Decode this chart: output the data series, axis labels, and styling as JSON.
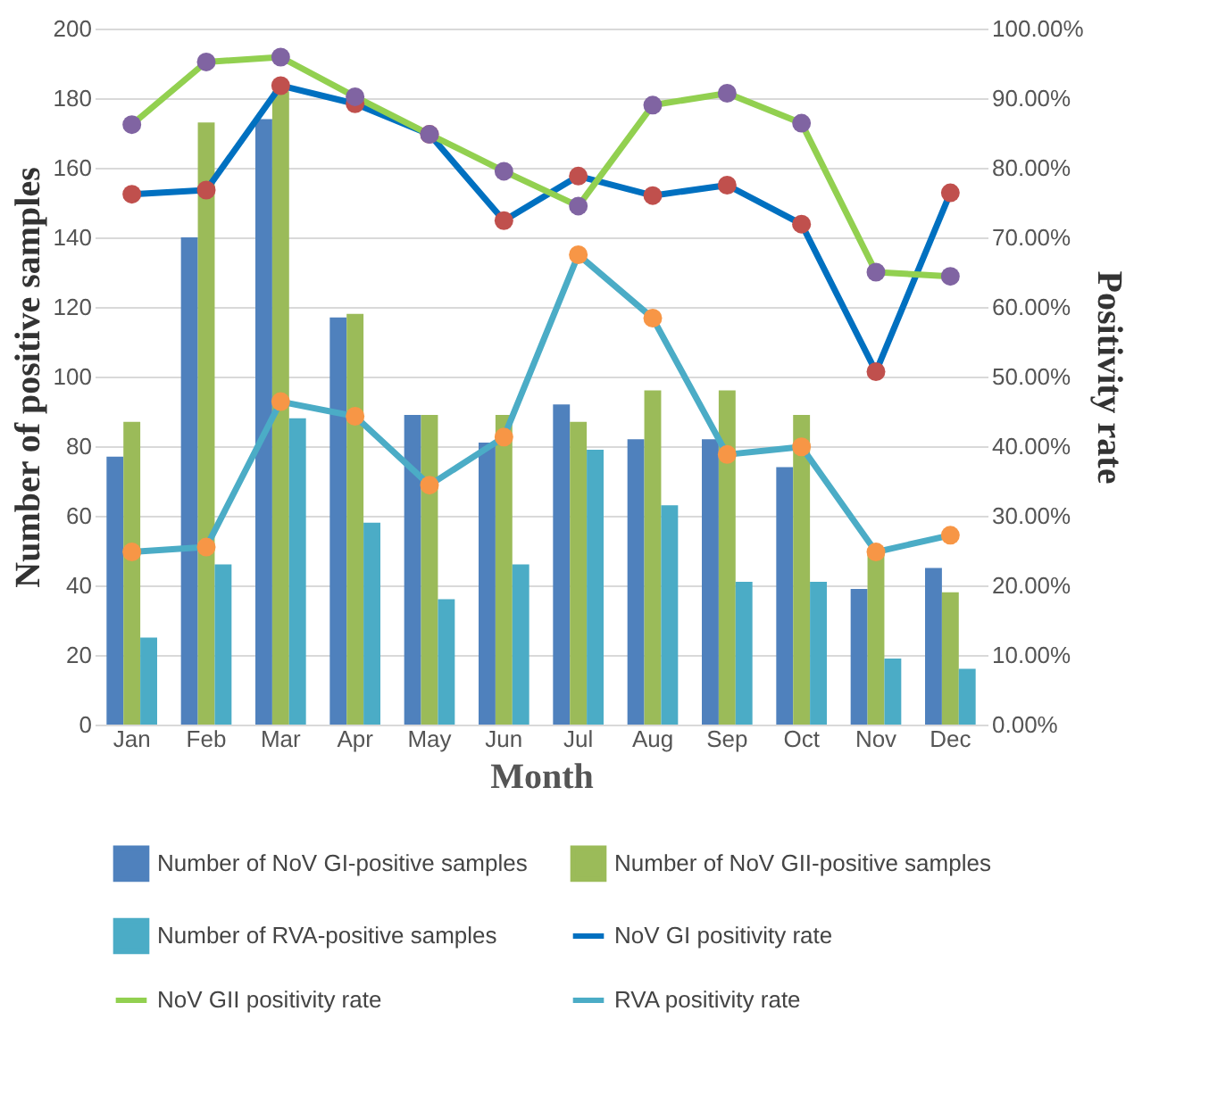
{
  "chart_data": {
    "type": "bar",
    "xlabel": "Month",
    "ylabel": "Number of positive samples",
    "y2label": "Positivity rate",
    "categories": [
      "Jan",
      "Feb",
      "Mar",
      "Apr",
      "May",
      "Jun",
      "Jul",
      "Aug",
      "Sep",
      "Oct",
      "Nov",
      "Dec"
    ],
    "series": [
      {
        "name": "Number of NoV GI-positive samples",
        "color": "#4f81bd",
        "values": [
          77,
          140,
          174,
          117,
          89,
          81,
          92,
          82,
          82,
          74,
          39,
          45
        ]
      },
      {
        "name": "Number of NoV GII-positive samples",
        "color": "#9bbb59",
        "values": [
          87,
          173,
          182,
          118,
          89,
          89,
          87,
          96,
          96,
          89,
          49,
          38
        ]
      },
      {
        "name": "Number of RVA-positive samples",
        "color": "#4bacc6",
        "values": [
          25,
          46,
          88,
          58,
          36,
          46,
          79,
          63,
          41,
          41,
          19,
          16
        ]
      },
      {
        "name": "NoV GI positivity rate",
        "type": "line",
        "axis": "y2",
        "color": "#0070c0",
        "colors": [
          "#c0504d",
          "#c0504d",
          "#c0504d",
          "#c0504d",
          "#c0504d",
          "#c0504d",
          "#c0504d",
          "#c0504d",
          "#c0504d",
          "#c0504d",
          "#c0504d",
          "#c0504d"
        ],
        "values": [
          76.2,
          76.8,
          91.8,
          89.2,
          84.8,
          72.4,
          78.8,
          76.0,
          77.5,
          71.9,
          50.7,
          76.4
        ]
      },
      {
        "name": "NoV GII positivity rate",
        "type": "line",
        "axis": "y2",
        "color": "#92d050",
        "colors": [
          "#8064a2",
          "#8064a2",
          "#8064a2",
          "#8064a2",
          "#8064a2",
          "#8064a2",
          "#8064a2",
          "#8064a2",
          "#8064a2",
          "#8064a2",
          "#8064a2",
          "#8064a2"
        ],
        "values": [
          86.2,
          95.2,
          95.9,
          90.2,
          84.8,
          79.5,
          74.5,
          89.0,
          90.7,
          86.4,
          65.0,
          64.4
        ]
      },
      {
        "name": "RVA positivity rate",
        "type": "line",
        "axis": "y2",
        "color": "#4bacc6",
        "colors": [
          "#f79646",
          "#f79646",
          "#f79646",
          "#f79646",
          "#f79646",
          "#f79646",
          "#f79646",
          "#f79646",
          "#f79646",
          "#f79646",
          "#f79646",
          "#f79646"
        ],
        "values": [
          24.8,
          25.5,
          46.4,
          44.3,
          34.4,
          41.3,
          67.5,
          58.4,
          38.8,
          39.9,
          24.8,
          27.2
        ]
      }
    ],
    "ylim": [
      0,
      200
    ],
    "yticks": [
      0,
      20,
      40,
      60,
      80,
      100,
      120,
      140,
      160,
      180,
      200
    ],
    "y2lim": [
      0,
      100
    ],
    "y2ticks": [
      {
        "value": 0,
        "label": "0.00%"
      },
      {
        "value": 10,
        "label": "10.00%"
      },
      {
        "value": 20,
        "label": "20.00%"
      },
      {
        "value": 30,
        "label": "30.00%"
      },
      {
        "value": 40,
        "label": "40.00%"
      },
      {
        "value": 50,
        "label": "50.00%"
      },
      {
        "value": 60,
        "label": "60.00%"
      },
      {
        "value": 70,
        "label": "70.00%"
      },
      {
        "value": 80,
        "label": "80.00%"
      },
      {
        "value": 90,
        "label": "90.00%"
      },
      {
        "value": 100,
        "label": "100.00%"
      }
    ],
    "grid": "y",
    "legend": "bottom",
    "marker": "circle"
  }
}
